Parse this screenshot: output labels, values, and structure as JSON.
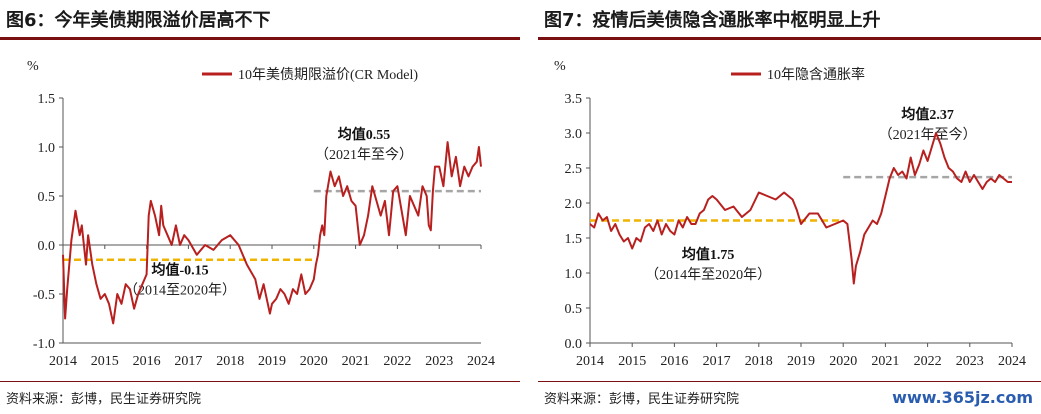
{
  "watermark": "www.365jz.com",
  "charts": [
    {
      "panel_title": "图6：今年美债期限溢价居高不下",
      "source": "资料来源：彭博，民生证券研究院",
      "chart_data": {
        "type": "line",
        "unit_label": "%",
        "xlim": [
          2014,
          2024
        ],
        "ylim": [
          -1.0,
          1.5
        ],
        "y_ticks": [
          -1.0,
          -0.5,
          0.0,
          0.5,
          1.0,
          1.5
        ],
        "y_tick_labels": [
          "-1.0",
          "-0.5",
          "0.0",
          "0.5",
          "1.0",
          "1.5"
        ],
        "x_ticks": [
          2014,
          2015,
          2016,
          2017,
          2018,
          2019,
          2020,
          2021,
          2022,
          2023,
          2024
        ],
        "x_tick_labels": [
          "2014",
          "2015",
          "2016",
          "2017",
          "2018",
          "2019",
          "2020",
          "2021",
          "2022",
          "2023",
          "2024"
        ],
        "series": [
          {
            "name": "10年美债期限溢价(CR Model)",
            "color": "#b8201f",
            "x": [
              2014.0,
              2014.05,
              2014.1,
              2014.15,
              2014.2,
              2014.3,
              2014.4,
              2014.45,
              2014.5,
              2014.55,
              2014.6,
              2014.7,
              2014.8,
              2014.9,
              2015.0,
              2015.1,
              2015.2,
              2015.3,
              2015.4,
              2015.5,
              2015.6,
              2015.7,
              2015.8,
              2015.9,
              2016.0,
              2016.05,
              2016.1,
              2016.2,
              2016.3,
              2016.35,
              2016.4,
              2016.5,
              2016.6,
              2016.7,
              2016.8,
              2016.9,
              2017.0,
              2017.2,
              2017.4,
              2017.6,
              2017.8,
              2018.0,
              2018.2,
              2018.4,
              2018.6,
              2018.7,
              2018.8,
              2018.9,
              2018.95,
              2019.0,
              2019.1,
              2019.2,
              2019.3,
              2019.4,
              2019.5,
              2019.6,
              2019.7,
              2019.8,
              2019.9,
              2020.0,
              2020.05,
              2020.1,
              2020.15,
              2020.2,
              2020.25,
              2020.3,
              2020.4,
              2020.5,
              2020.6,
              2020.7,
              2020.8,
              2020.9,
              2021.0,
              2021.1,
              2021.2,
              2021.3,
              2021.4,
              2021.5,
              2021.6,
              2021.7,
              2021.8,
              2021.9,
              2022.0,
              2022.1,
              2022.2,
              2022.3,
              2022.4,
              2022.5,
              2022.6,
              2022.7,
              2022.75,
              2022.8,
              2022.85,
              2022.9,
              2023.0,
              2023.1,
              2023.2,
              2023.3,
              2023.4,
              2023.5,
              2023.6,
              2023.7,
              2023.8,
              2023.9,
              2023.95,
              2024.0
            ],
            "y": [
              -0.1,
              -0.75,
              -0.45,
              -0.2,
              0.05,
              0.35,
              0.1,
              0.2,
              0.0,
              -0.2,
              0.1,
              -0.2,
              -0.4,
              -0.55,
              -0.5,
              -0.6,
              -0.8,
              -0.5,
              -0.6,
              -0.4,
              -0.45,
              -0.65,
              -0.5,
              -0.4,
              -0.3,
              0.3,
              0.45,
              0.3,
              0.1,
              0.4,
              0.2,
              0.1,
              0.0,
              0.2,
              0.0,
              0.1,
              0.05,
              -0.1,
              0.0,
              -0.05,
              0.05,
              0.1,
              0.0,
              -0.2,
              -0.35,
              -0.55,
              -0.4,
              -0.6,
              -0.7,
              -0.6,
              -0.55,
              -0.45,
              -0.5,
              -0.6,
              -0.45,
              -0.5,
              -0.3,
              -0.5,
              -0.45,
              -0.35,
              -0.2,
              -0.1,
              0.1,
              0.2,
              0.1,
              0.5,
              0.75,
              0.6,
              0.7,
              0.5,
              0.6,
              0.45,
              0.4,
              0.0,
              0.1,
              0.3,
              0.6,
              0.45,
              0.3,
              0.45,
              0.1,
              0.55,
              0.6,
              0.35,
              0.1,
              0.5,
              0.4,
              0.3,
              0.6,
              0.5,
              0.2,
              0.15,
              0.55,
              0.8,
              0.8,
              0.6,
              1.05,
              0.7,
              0.9,
              0.6,
              0.8,
              0.7,
              0.8,
              0.85,
              1.0,
              0.8
            ]
          }
        ],
        "reference_lines": [
          {
            "label": "均值-0.15",
            "sublabel": "（2014至2020年）",
            "y": -0.15,
            "x_from": 2014,
            "x_to": 2020,
            "color": "#f0b400"
          },
          {
            "label": "均值0.55",
            "sublabel": "（2021年至今）",
            "y": 0.55,
            "x_from": 2020,
            "x_to": 2024,
            "color": "#a6a6a6"
          }
        ],
        "legend_position": "top-center"
      }
    },
    {
      "panel_title": "图7：疫情后美债隐含通胀率中枢明显上升",
      "source": "资料来源：彭博，民生证券研究院",
      "chart_data": {
        "type": "line",
        "unit_label": "%",
        "xlim": [
          2014,
          2024
        ],
        "ylim": [
          0.0,
          3.5
        ],
        "y_ticks": [
          0.0,
          0.5,
          1.0,
          1.5,
          2.0,
          2.5,
          3.0,
          3.5
        ],
        "y_tick_labels": [
          "0.0",
          "0.5",
          "1.0",
          "1.5",
          "2.0",
          "2.5",
          "3.0",
          "3.5"
        ],
        "x_ticks": [
          2014,
          2015,
          2016,
          2017,
          2018,
          2019,
          2020,
          2021,
          2022,
          2023,
          2024
        ],
        "x_tick_labels": [
          "2014",
          "2015",
          "2016",
          "2017",
          "2018",
          "2019",
          "2020",
          "2021",
          "2022",
          "2023",
          "2024"
        ],
        "series": [
          {
            "name": "10年隐含通胀率",
            "color": "#b8201f",
            "x": [
              2014.0,
              2014.1,
              2014.2,
              2014.3,
              2014.4,
              2014.5,
              2014.6,
              2014.7,
              2014.8,
              2014.9,
              2015.0,
              2015.1,
              2015.2,
              2015.3,
              2015.4,
              2015.5,
              2015.6,
              2015.7,
              2015.8,
              2015.9,
              2016.0,
              2016.1,
              2016.2,
              2016.3,
              2016.4,
              2016.5,
              2016.6,
              2016.7,
              2016.8,
              2016.9,
              2017.0,
              2017.2,
              2017.4,
              2017.6,
              2017.8,
              2018.0,
              2018.2,
              2018.4,
              2018.6,
              2018.8,
              2018.9,
              2019.0,
              2019.2,
              2019.4,
              2019.6,
              2019.8,
              2020.0,
              2020.1,
              2020.2,
              2020.25,
              2020.3,
              2020.4,
              2020.5,
              2020.6,
              2020.7,
              2020.8,
              2020.9,
              2021.0,
              2021.1,
              2021.2,
              2021.3,
              2021.4,
              2021.5,
              2021.6,
              2021.7,
              2021.8,
              2021.9,
              2022.0,
              2022.1,
              2022.2,
              2022.3,
              2022.4,
              2022.5,
              2022.6,
              2022.7,
              2022.8,
              2022.9,
              2023.0,
              2023.1,
              2023.2,
              2023.3,
              2023.4,
              2023.5,
              2023.6,
              2023.7,
              2023.8,
              2023.9,
              2024.0
            ],
            "y": [
              1.7,
              1.65,
              1.85,
              1.75,
              1.8,
              1.6,
              1.7,
              1.55,
              1.45,
              1.5,
              1.35,
              1.5,
              1.45,
              1.65,
              1.7,
              1.6,
              1.75,
              1.55,
              1.7,
              1.6,
              1.55,
              1.75,
              1.65,
              1.8,
              1.7,
              1.7,
              1.85,
              1.9,
              2.05,
              2.1,
              2.05,
              1.9,
              1.95,
              1.8,
              1.9,
              2.15,
              2.1,
              2.05,
              2.15,
              2.05,
              1.9,
              1.7,
              1.85,
              1.85,
              1.65,
              1.7,
              1.75,
              1.7,
              1.2,
              0.85,
              1.1,
              1.3,
              1.55,
              1.65,
              1.75,
              1.7,
              1.85,
              2.1,
              2.35,
              2.5,
              2.4,
              2.45,
              2.35,
              2.65,
              2.4,
              2.55,
              2.75,
              2.6,
              2.8,
              3.0,
              2.85,
              2.65,
              2.5,
              2.45,
              2.35,
              2.3,
              2.45,
              2.3,
              2.4,
              2.3,
              2.2,
              2.3,
              2.35,
              2.3,
              2.4,
              2.35,
              2.3,
              2.3
            ]
          }
        ],
        "reference_lines": [
          {
            "label": "均值1.75",
            "sublabel": "（2014年至2020年）",
            "y": 1.75,
            "x_from": 2014,
            "x_to": 2020,
            "color": "#f0b400"
          },
          {
            "label": "均值2.37",
            "sublabel": "（2021年至今）",
            "y": 2.37,
            "x_from": 2020,
            "x_to": 2024,
            "color": "#a6a6a6"
          }
        ],
        "legend_position": "top-center"
      }
    }
  ]
}
